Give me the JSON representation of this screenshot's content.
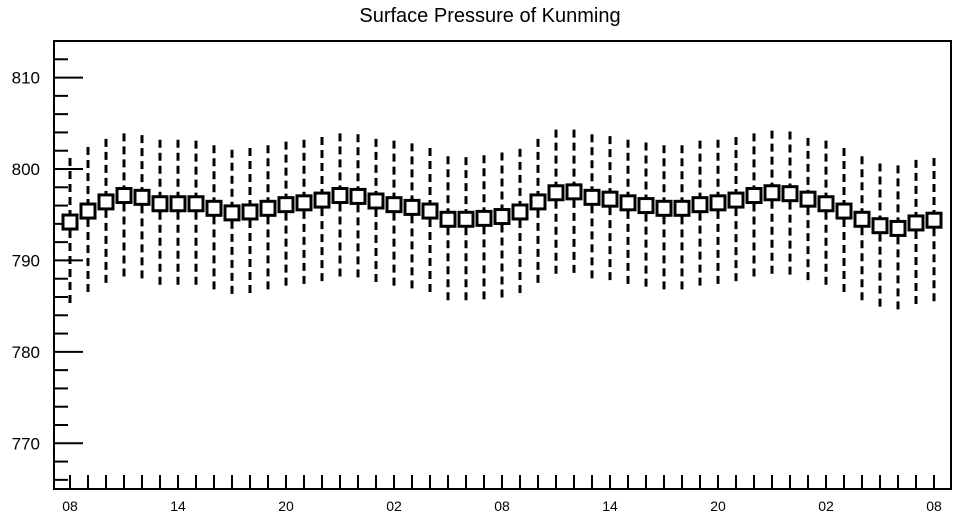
{
  "chart_data": {
    "type": "scatter",
    "title": "Surface Pressure of Kunming",
    "xlabel": "",
    "ylabel": "",
    "ylim": [
      765,
      814
    ],
    "y_ticks": [
      "770",
      "780",
      "790",
      "800",
      "810"
    ],
    "x_tick_labels": [
      {
        "index": 0,
        "label": "08"
      },
      {
        "index": 6,
        "label": "14"
      },
      {
        "index": 12,
        "label": "20"
      },
      {
        "index": 18,
        "label": "02"
      },
      {
        "index": 24,
        "label": "08"
      },
      {
        "index": 30,
        "label": "14"
      },
      {
        "index": 36,
        "label": "20"
      },
      {
        "index": 42,
        "label": "02"
      },
      {
        "index": 48,
        "label": "08"
      }
    ],
    "grid": false,
    "series": [
      {
        "values": [
          794.2,
          795.4,
          796.4,
          797.1,
          796.9,
          796.2,
          796.2,
          796.2,
          795.7,
          795.2,
          795.3,
          795.7,
          796.1,
          796.3,
          796.6,
          797.1,
          797.0,
          796.5,
          796.1,
          795.8,
          795.4,
          794.5,
          794.5,
          794.6,
          794.8,
          795.3,
          796.4,
          797.4,
          797.5,
          796.9,
          796.7,
          796.3,
          796.0,
          795.7,
          795.7,
          796.1,
          796.3,
          796.6,
          797.1,
          797.4,
          797.3,
          796.7,
          796.2,
          795.4,
          794.5,
          793.8,
          793.5,
          794.1,
          794.4
        ],
        "err_high": [
          801.2,
          802.4,
          803.3,
          803.9,
          803.7,
          803.2,
          803.2,
          803.1,
          802.6,
          802.1,
          802.3,
          802.6,
          803.0,
          803.2,
          803.5,
          803.9,
          803.8,
          803.3,
          803.1,
          802.8,
          802.3,
          801.4,
          801.3,
          801.5,
          801.8,
          802.2,
          803.3,
          804.3,
          804.3,
          803.8,
          803.6,
          803.2,
          802.9,
          802.6,
          802.6,
          803.1,
          803.2,
          803.5,
          803.9,
          804.2,
          804.1,
          803.4,
          803.1,
          802.3,
          801.4,
          800.6,
          800.4,
          801.0,
          801.2
        ],
        "err_low": [
          785.0,
          786.3,
          787.3,
          787.8,
          787.6,
          787.0,
          787.0,
          787.0,
          786.4,
          786.0,
          786.2,
          786.5,
          786.8,
          787.1,
          787.5,
          787.9,
          787.8,
          787.4,
          787.0,
          786.7,
          786.3,
          785.5,
          785.4,
          785.6,
          785.7,
          786.2,
          787.3,
          788.1,
          788.2,
          787.7,
          787.5,
          787.0,
          786.7,
          786.5,
          786.5,
          786.9,
          787.1,
          787.4,
          787.9,
          788.3,
          788.2,
          787.6,
          787.0,
          786.3,
          785.5,
          784.8,
          784.6,
          785.1,
          785.3
        ]
      }
    ]
  }
}
